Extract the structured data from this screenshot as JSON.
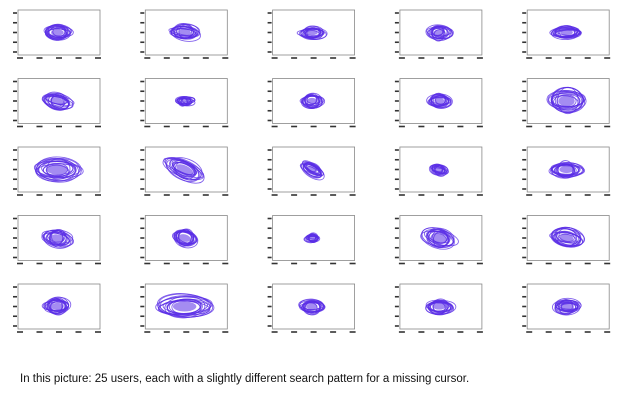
{
  "caption": "In this picture: 25 users, each with a slightly different search pattern for a missing cursor."
}
